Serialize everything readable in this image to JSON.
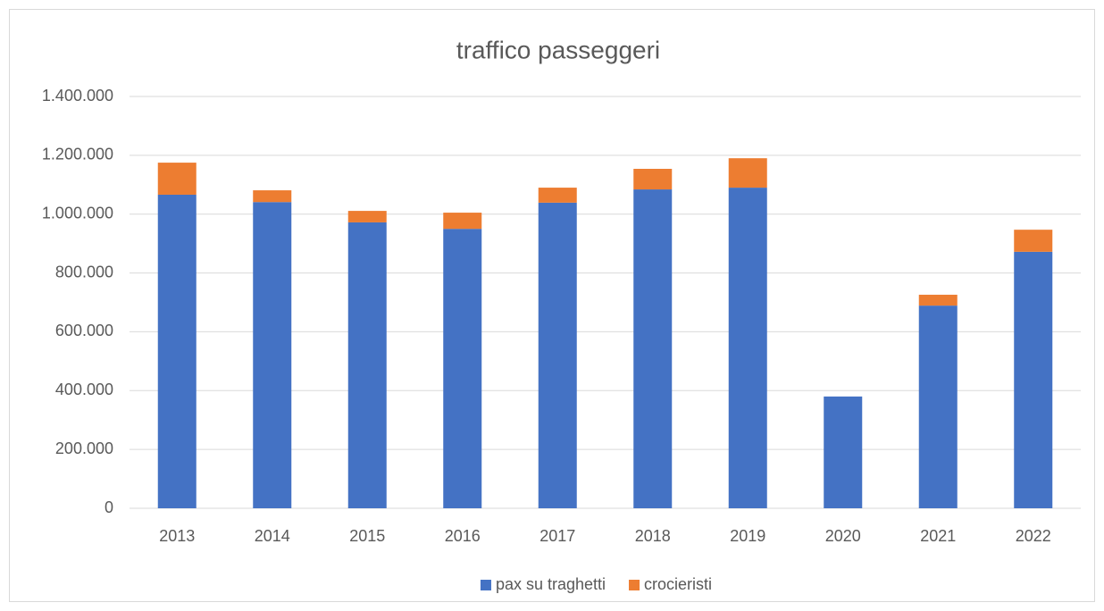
{
  "chart_data": {
    "type": "bar",
    "stacked": true,
    "title": "traffico passeggeri",
    "categories": [
      "2013",
      "2014",
      "2015",
      "2016",
      "2017",
      "2018",
      "2019",
      "2020",
      "2021",
      "2022"
    ],
    "series": [
      {
        "name": "pax su traghetti",
        "color": "#4472c4",
        "values": [
          1066000,
          1041000,
          972000,
          950000,
          1039000,
          1084000,
          1090000,
          380000,
          689000,
          872000
        ]
      },
      {
        "name": "crocieristi",
        "color": "#ed7d31",
        "values": [
          109000,
          40000,
          39000,
          55000,
          51000,
          70000,
          100000,
          0,
          37000,
          75000
        ]
      }
    ],
    "ylim": [
      0,
      1400000
    ],
    "yticks": [
      0,
      {
        "value": 200000,
        "label": "200.000"
      },
      {
        "value": 400000,
        "label": "400.000"
      },
      {
        "value": 600000,
        "label": "600.000"
      },
      {
        "value": 800000,
        "label": "800.000"
      },
      {
        "value": 1000000,
        "label": "1.000.000"
      },
      {
        "value": 1200000,
        "label": "1.200.000"
      },
      {
        "value": 1400000,
        "label": "1.400.000"
      }
    ],
    "grid": true,
    "legend": "bottom"
  }
}
